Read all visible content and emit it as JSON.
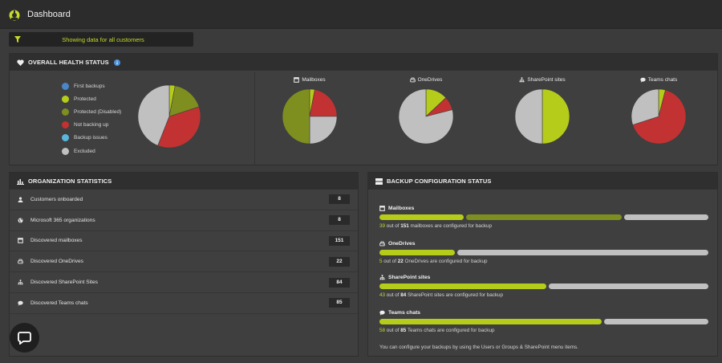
{
  "header": {
    "title": "Dashboard",
    "logo_icon": "speedometer-icon"
  },
  "filter": {
    "text": "Showing data for all customers",
    "icon": "funnel-icon"
  },
  "colors": {
    "first_backups": "#4a86c8",
    "protected": "#b6cc1a",
    "protected_disabled": "#7e8f1f",
    "not_backing_up": "#c23232",
    "backup_issues": "#5ab7dc",
    "excluded": "#c0c0c0",
    "accent": "#c6da2a"
  },
  "health": {
    "title": "OVERALL HEALTH STATUS",
    "legend": [
      {
        "label": "First backups",
        "color": "#4a86c8"
      },
      {
        "label": "Protected",
        "color": "#b6cc1a"
      },
      {
        "label": "Protected (Disabled)",
        "color": "#7e8f1f"
      },
      {
        "label": "Not backing up",
        "color": "#c23232"
      },
      {
        "label": "Backup issues",
        "color": "#5ab7dc"
      },
      {
        "label": "Excluded",
        "color": "#c0c0c0"
      }
    ],
    "overall": [
      {
        "key": "protected",
        "value": 3
      },
      {
        "key": "protected_disabled",
        "value": 17
      },
      {
        "key": "not_backing_up",
        "value": 36
      },
      {
        "key": "excluded",
        "value": 44
      }
    ],
    "mini_charts": [
      {
        "label": "Mailboxes",
        "icon": "mailbox-icon",
        "slices": [
          {
            "key": "protected",
            "value": 3
          },
          {
            "key": "not_backing_up",
            "value": 22
          },
          {
            "key": "excluded",
            "value": 25
          },
          {
            "key": "protected_disabled",
            "value": 50
          }
        ]
      },
      {
        "label": "OneDrives",
        "icon": "hard-drive-icon",
        "slices": [
          {
            "key": "protected",
            "value": 13
          },
          {
            "key": "not_backing_up",
            "value": 8
          },
          {
            "key": "excluded",
            "value": 79
          }
        ]
      },
      {
        "label": "SharePoint sites",
        "icon": "sitemap-icon",
        "slices": [
          {
            "key": "protected",
            "value": 50
          },
          {
            "key": "excluded",
            "value": 50
          }
        ]
      },
      {
        "label": "Teams chats",
        "icon": "chat-bubble-icon",
        "slices": [
          {
            "key": "protected",
            "value": 4
          },
          {
            "key": "not_backing_up",
            "value": 66
          },
          {
            "key": "excluded",
            "value": 30
          }
        ]
      }
    ]
  },
  "org": {
    "title": "ORGANIZATION STATISTICS",
    "rows": [
      {
        "label": "Customers onboarded",
        "value": "8",
        "icon": "user-icon"
      },
      {
        "label": "Microsoft 365 organizations",
        "value": "8",
        "icon": "globe-icon"
      },
      {
        "label": "Discovered mailboxes",
        "value": "151",
        "icon": "mailbox-icon"
      },
      {
        "label": "Discovered OneDrives",
        "value": "22",
        "icon": "hard-drive-icon"
      },
      {
        "label": "Discovered SharePoint Sites",
        "value": "84",
        "icon": "sitemap-icon"
      },
      {
        "label": "Discovered Teams chats",
        "value": "85",
        "icon": "chat-bubble-icon"
      }
    ]
  },
  "backup": {
    "title": "BACKUP CONFIGURATION STATUS",
    "items": [
      {
        "title": "Mailboxes",
        "icon": "mailbox-icon",
        "configured": "39",
        "of_text": "out of",
        "total": "151",
        "suffix": "mailboxes are configured for backup",
        "segments": [
          {
            "fraction": 0.26,
            "color": "#b6cc1a"
          },
          {
            "fraction": 0.48,
            "color": "#7e8f1f"
          },
          {
            "fraction": 0.26,
            "color": "#c0c0c0"
          }
        ]
      },
      {
        "title": "OneDrives",
        "icon": "hard-drive-icon",
        "configured": "5",
        "of_text": "out of",
        "total": "22",
        "suffix": "OneDrives are configured for backup",
        "segments": [
          {
            "fraction": 0.23,
            "color": "#b6cc1a"
          },
          {
            "fraction": 0.77,
            "color": "#c0c0c0"
          }
        ]
      },
      {
        "title": "SharePoint sites",
        "icon": "sitemap-icon",
        "configured": "43",
        "of_text": "out of",
        "total": "84",
        "suffix": "SharePoint sites are configured for backup",
        "segments": [
          {
            "fraction": 0.51,
            "color": "#b6cc1a"
          },
          {
            "fraction": 0.49,
            "color": "#c0c0c0"
          }
        ]
      },
      {
        "title": "Teams chats",
        "icon": "chat-bubble-icon",
        "configured": "58",
        "of_text": "out of",
        "total": "85",
        "suffix": "Teams chats are configured for backup",
        "segments": [
          {
            "fraction": 0.68,
            "color": "#b6cc1a"
          },
          {
            "fraction": 0.32,
            "color": "#c0c0c0"
          }
        ]
      }
    ],
    "footer": "You can configure your backups by using the Users or Groups & SharePoint menu items."
  },
  "chat_button": {
    "icon": "chat-support-icon"
  }
}
